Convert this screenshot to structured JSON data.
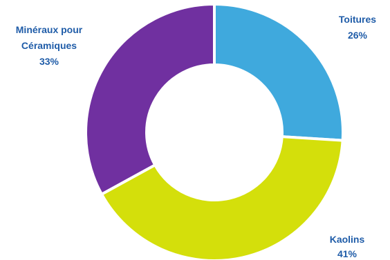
{
  "chart_data": {
    "type": "pie",
    "donut": true,
    "categories": [
      "Toitures",
      "Kaolins",
      "Minéraux pour Céramiques"
    ],
    "values": [
      26,
      41,
      33
    ],
    "value_labels": [
      "26%",
      "41%",
      "33%"
    ],
    "colors": [
      "#3fa9dd",
      "#d4df0b",
      "#7030a0"
    ],
    "label_color": "#1f5ca8",
    "legend": "none",
    "start_angle_deg": 0,
    "direction": "clockwise"
  },
  "labels": {
    "toitures": {
      "name": "Toitures",
      "pct": "26%"
    },
    "kaolins": {
      "name": "Kaolins",
      "pct": "41%"
    },
    "mineraux": {
      "name_line1": "Minéraux pour",
      "name_line2": "Céramiques",
      "pct": "33%"
    }
  }
}
